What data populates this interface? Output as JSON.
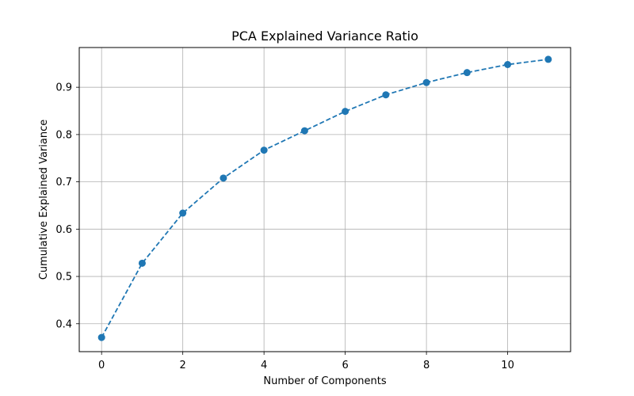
{
  "chart_data": {
    "type": "line",
    "title": "PCA Explained Variance Ratio",
    "xlabel": "Number of Components",
    "ylabel": "Cumulative Explained Variance",
    "xlim": [
      -0.55,
      11.55
    ],
    "ylim": [
      0.341,
      0.984
    ],
    "xticks": [
      0,
      2,
      4,
      6,
      8,
      10
    ],
    "yticks": [
      0.4,
      0.5,
      0.6,
      0.7,
      0.8,
      0.9
    ],
    "grid": true,
    "line_style": "dashed",
    "marker": "circle",
    "series": [
      {
        "color": "#1f77b4",
        "x": [
          0,
          1,
          2,
          3,
          4,
          5,
          6,
          7,
          8,
          9,
          10,
          11
        ],
        "y": [
          0.371,
          0.528,
          0.634,
          0.708,
          0.767,
          0.808,
          0.849,
          0.884,
          0.91,
          0.931,
          0.948,
          0.959
        ]
      }
    ]
  }
}
